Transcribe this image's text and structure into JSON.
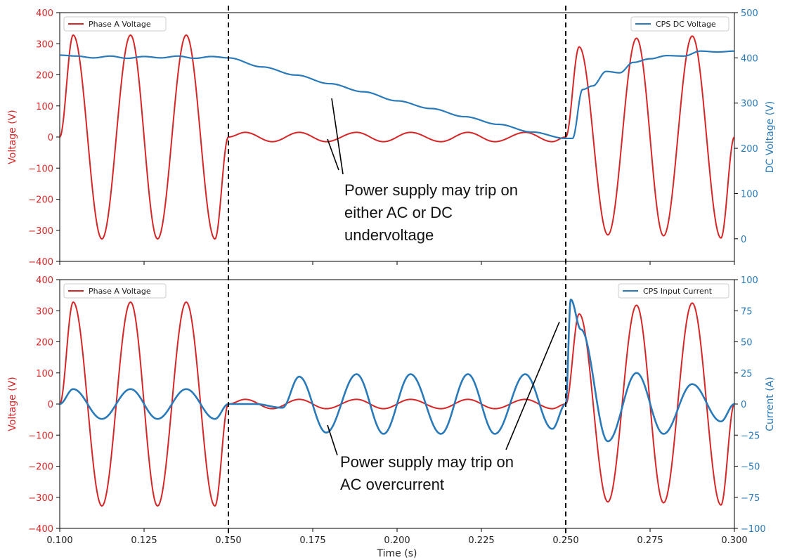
{
  "chart_data": [
    {
      "type": "line",
      "panel": "top",
      "xlabel": "",
      "ylabel": "Voltage (V)",
      "y2label": "DC Voltage (V)",
      "xlim": [
        0.1,
        0.3
      ],
      "ylim": [
        -400,
        400
      ],
      "y2lim": [
        -50,
        500
      ],
      "x_ticks": [],
      "y_ticks": [
        "400",
        "300",
        "200",
        "100",
        "0",
        "−100",
        "−200",
        "−300",
        "−400"
      ],
      "y2_ticks": [
        "500",
        "400",
        "300",
        "200",
        "100",
        "0"
      ],
      "y_color": "#d62728",
      "y2_color": "#2a7ab9",
      "series": [
        {
          "name": "Phase A Voltage",
          "axis": "left",
          "color": "#d62728",
          "description": "sinusoid 60 Hz, amplitude 328 V; sag to ~15 V between 0.150 s and 0.250 s",
          "x": [
            0.1,
            0.104,
            0.1125,
            0.121,
            0.129,
            0.1375,
            0.146,
            0.15,
            0.155,
            0.163,
            0.171,
            0.179,
            0.188,
            0.196,
            0.204,
            0.213,
            0.221,
            0.229,
            0.238,
            0.246,
            0.25,
            0.254,
            0.2625,
            0.271,
            0.279,
            0.2875,
            0.296,
            0.3
          ],
          "y": [
            0,
            328,
            -328,
            328,
            -328,
            328,
            -328,
            0,
            15,
            -15,
            15,
            -15,
            15,
            -15,
            15,
            -15,
            15,
            -15,
            15,
            -15,
            0,
            290,
            -315,
            318,
            -318,
            325,
            -325,
            0
          ]
        },
        {
          "name": "CPS DC Voltage",
          "axis": "right",
          "color": "#2a7ab9",
          "x": [
            0.1,
            0.105,
            0.11,
            0.115,
            0.12,
            0.125,
            0.13,
            0.135,
            0.14,
            0.145,
            0.15,
            0.16,
            0.17,
            0.18,
            0.19,
            0.2,
            0.21,
            0.22,
            0.23,
            0.24,
            0.25,
            0.252,
            0.255,
            0.258,
            0.262,
            0.266,
            0.27,
            0.275,
            0.28,
            0.285,
            0.29,
            0.295,
            0.3
          ],
          "y": [
            406,
            404,
            400,
            404,
            399,
            403,
            400,
            404,
            399,
            403,
            400,
            380,
            362,
            343,
            325,
            305,
            288,
            270,
            253,
            236,
            222,
            222,
            330,
            338,
            370,
            367,
            390,
            398,
            405,
            404,
            415,
            413,
            415
          ]
        }
      ],
      "legend": {
        "left": "top-left",
        "right": "top-right"
      }
    },
    {
      "type": "line",
      "panel": "bottom",
      "xlabel": "Time (s)",
      "ylabel": "Voltage (V)",
      "y2label": "Current (A)",
      "xlim": [
        0.1,
        0.3
      ],
      "ylim": [
        -400,
        400
      ],
      "y2lim": [
        -100,
        100
      ],
      "x_ticks": [
        "0.100",
        "0.125",
        "0.150",
        "0.175",
        "0.200",
        "0.225",
        "0.250",
        "0.275",
        "0.300"
      ],
      "y_ticks": [
        "400",
        "300",
        "200",
        "100",
        "0",
        "−100",
        "−200",
        "−300",
        "−400"
      ],
      "y2_ticks": [
        "100",
        "75",
        "50",
        "25",
        "0",
        "−25",
        "−50",
        "−75",
        "−100"
      ],
      "y_color": "#d62728",
      "y2_color": "#2a7ab9",
      "series": [
        {
          "name": "Phase A Voltage",
          "axis": "left",
          "color": "#d62728",
          "x": [
            0.1,
            0.104,
            0.1125,
            0.121,
            0.129,
            0.1375,
            0.146,
            0.15,
            0.155,
            0.163,
            0.171,
            0.179,
            0.188,
            0.196,
            0.204,
            0.213,
            0.221,
            0.229,
            0.238,
            0.246,
            0.25,
            0.254,
            0.2625,
            0.271,
            0.279,
            0.2875,
            0.296,
            0.3
          ],
          "y": [
            0,
            328,
            -328,
            328,
            -328,
            328,
            -328,
            0,
            15,
            -15,
            15,
            -15,
            15,
            -15,
            15,
            -15,
            15,
            -15,
            15,
            -15,
            0,
            290,
            -315,
            318,
            -318,
            325,
            -325,
            0
          ]
        },
        {
          "name": "CPS Input Current",
          "axis": "right",
          "color": "#2a7ab9",
          "x": [
            0.1,
            0.104,
            0.1125,
            0.121,
            0.129,
            0.1375,
            0.146,
            0.15,
            0.158,
            0.166,
            0.171,
            0.179,
            0.188,
            0.196,
            0.204,
            0.213,
            0.221,
            0.229,
            0.238,
            0.246,
            0.25,
            0.2515,
            0.2545,
            0.2625,
            0.271,
            0.279,
            0.2875,
            0.296,
            0.3
          ],
          "y": [
            0,
            12,
            -12,
            12,
            -12,
            12,
            -12,
            0,
            0,
            -3,
            22,
            -23,
            24,
            -24,
            24,
            -24,
            24,
            -24,
            24,
            -20,
            0,
            84,
            60,
            -30,
            25,
            -24,
            16,
            -14,
            0
          ]
        }
      ],
      "legend": {
        "left": "top-left",
        "right": "top-right"
      }
    }
  ],
  "markers": {
    "vlines_x": [
      0.15,
      0.25
    ],
    "style": "dashed"
  },
  "annotations": [
    {
      "panel": "top",
      "lines": [
        "Power supply may trip on",
        "either AC or DC",
        "undervoltage"
      ]
    },
    {
      "panel": "bottom",
      "lines": [
        "Power supply may trip on",
        "AC overcurrent"
      ]
    }
  ]
}
